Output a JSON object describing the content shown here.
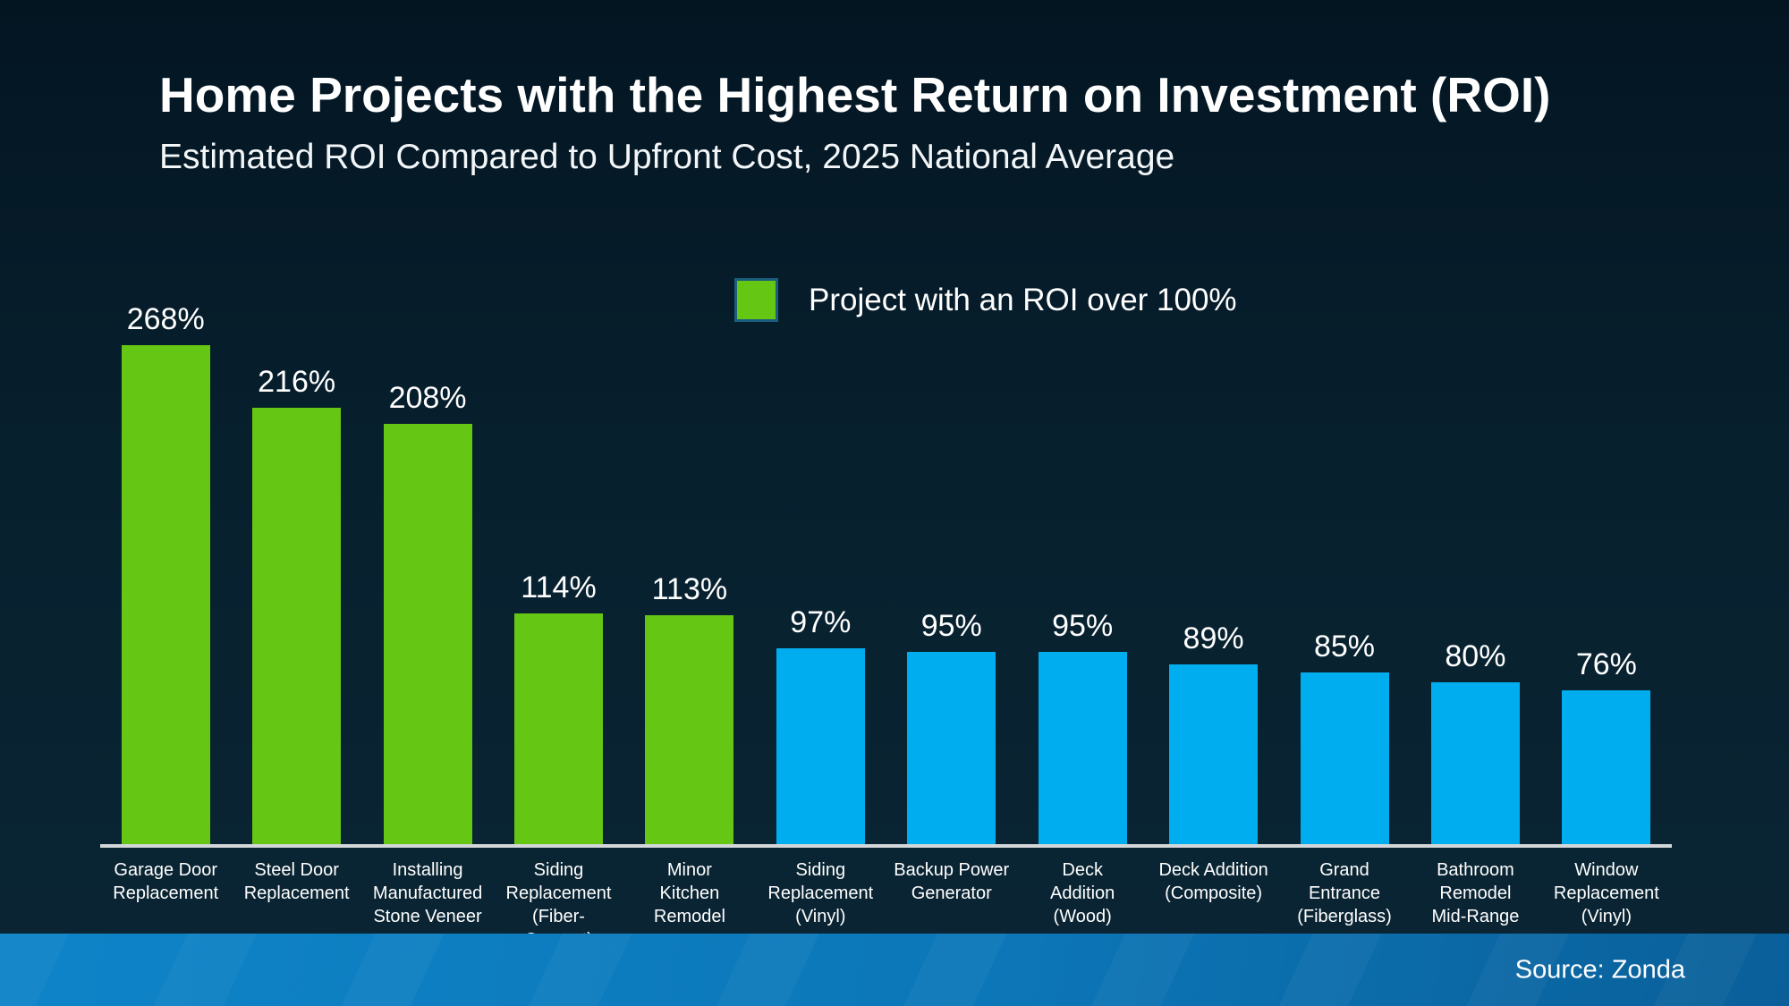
{
  "header": {
    "title": "Home Projects with the Highest Return on Investment (ROI)",
    "subtitle": "Estimated ROI Compared to Upfront Cost, 2025 National Average"
  },
  "legend": {
    "label": "Project with an ROI over 100%",
    "swatch_color": "#66C614",
    "swatch_border_color": "#1A5E7E"
  },
  "footer": {
    "source_label": "Source: Zonda"
  },
  "colors": {
    "above_threshold_bar": "#66C614",
    "below_threshold_bar": "#00AEEF",
    "axis_line": "#D4D7D9",
    "background_top": "#041522",
    "background_bottom": "#0A2534",
    "footer_gradient_start": "#0E84C8",
    "footer_gradient_end": "#0A5F99",
    "text": "#FFFFFF"
  },
  "chart_data": {
    "type": "bar",
    "title": "Home Projects with the Highest Return on Investment (ROI)",
    "subtitle": "Estimated ROI Compared to Upfront Cost, 2025 National Average",
    "categories": [
      "Garage Door\nReplacement",
      "Steel Door\nReplacement",
      "Installing\nManufactured\nStone Veneer",
      "Siding\nReplacement\n(Fiber-Cement)",
      "Minor\nKitchen Remodel",
      "Siding\nReplacement\n(Vinyl)",
      "Backup Power\nGenerator",
      "Deck\nAddition\n(Wood)",
      "Deck Addition\n(Composite)",
      "Grand Entrance\n(Fiberglass)",
      "Bathroom\nRemodel\nMid-Range",
      "Window\nReplacement\n(Vinyl)"
    ],
    "values": [
      268,
      216,
      208,
      114,
      113,
      97,
      95,
      95,
      89,
      85,
      80,
      76
    ],
    "data_labels": [
      "268%",
      "216%",
      "208%",
      "114%",
      "113%",
      "97%",
      "95%",
      "95%",
      "89%",
      "85%",
      "80%",
      "76%"
    ],
    "unit": "%",
    "color_threshold": 100,
    "color_rule": "green if ROI over 100%, blue otherwise",
    "legend": [
      {
        "label": "Project with an ROI over 100%",
        "color": "#66C614"
      }
    ],
    "legend_position": "top-center",
    "ylim": [
      0,
      280
    ],
    "grid": false,
    "y_axis_visible": false,
    "source": "Source: Zonda"
  }
}
